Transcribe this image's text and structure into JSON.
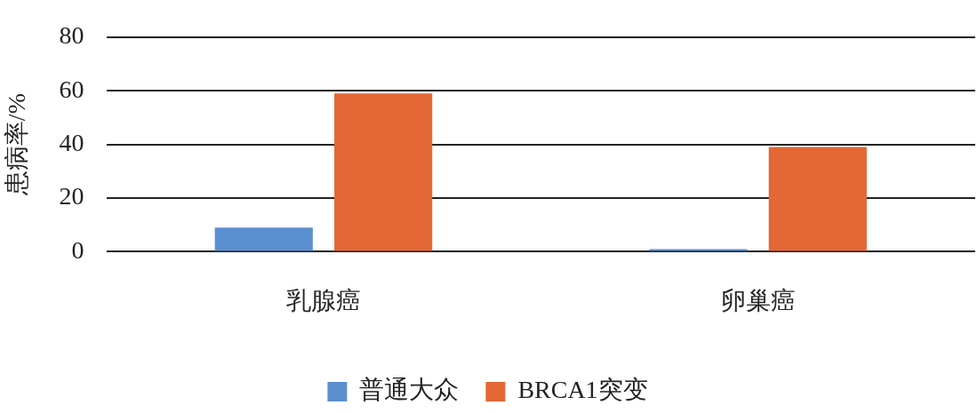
{
  "chart_data": {
    "type": "bar",
    "ylabel": "患病率/%",
    "categories": [
      "乳腺癌",
      "卵巢癌"
    ],
    "series": [
      {
        "name": "普通大众",
        "color": "#5b8fd0",
        "values": [
          9,
          1
        ]
      },
      {
        "name": "BRCA1突变",
        "color": "#e36835",
        "values": [
          59,
          39
        ]
      }
    ],
    "ylim": [
      0,
      80
    ],
    "yticks": [
      0,
      20,
      40,
      60,
      80
    ],
    "grid": "y",
    "legend": "bottom"
  }
}
